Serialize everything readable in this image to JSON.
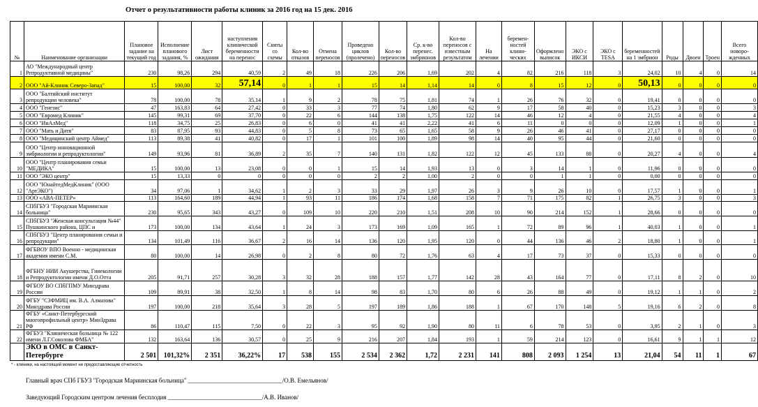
{
  "title": "Отчет о результативности работы клиник за 2016 год на 15 дек. 2016",
  "columns": [
    "№",
    "Наименование организации",
    "Плановое задание на текущий год",
    "Исполнение планового задания, %",
    "Лист ожидания",
    "наступления клинической беременности на перенос",
    "Сняты со схемы",
    "Кол-во отказов",
    "Отмена переносов",
    "Проведено циклов (пролечено)",
    "Кол-во переносов",
    "Ср. к-во перенес. эмбрионов",
    "Кол-во переносов с известным результатом",
    "На лечении",
    "беремен-ностей клини-ческих",
    "Оформлено выписок",
    "ЭКО с ИКСИ",
    "ЭКО с TESA",
    "беременностей на 1 эмбрион",
    "Роды",
    "Двоен",
    "Троен",
    "Всего новоро-жденных"
  ],
  "highlight_color": "#ffff00",
  "highlighted_row": "2",
  "rows": [
    [
      "1",
      "АО \"Международный центр Репродуктивной медицины\"",
      "230",
      "98,26",
      "294",
      "40,59",
      "2",
      "49",
      "18",
      "226",
      "206",
      "1,69",
      "202",
      "4",
      "82",
      "216",
      "118",
      "3",
      "24,02",
      "10",
      "4",
      "0",
      "14"
    ],
    [
      "2",
      "ООО \"Ай-Клиник Северо-Запад\"",
      "15",
      "100,00",
      "32",
      "57,14",
      "0",
      "1",
      "1",
      "15",
      "14",
      "1,14",
      "14",
      "0",
      "8",
      "15",
      "12",
      "0",
      "50,13",
      "0",
      "0",
      "0",
      "0"
    ],
    [
      "3",
      "ООО \"Балтийский институт репродукции человека\"",
      "78",
      "100,00",
      "78",
      "35,14",
      "1",
      "9",
      "2",
      "78",
      "75",
      "1,81",
      "74",
      "1",
      "26",
      "76",
      "32",
      "0",
      "19,41",
      "0",
      "0",
      "0",
      "0"
    ],
    [
      "4",
      "ООО \"Генезис\"",
      "47",
      "163,83",
      "64",
      "27,42",
      "0",
      "33",
      "3",
      "77",
      "74",
      "1,80",
      "62",
      "9",
      "17",
      "58",
      "40",
      "0",
      "15,23",
      "3",
      "0",
      "0",
      "3"
    ],
    [
      "5",
      "ООО \"Евромед Клиник\"",
      "145",
      "99,31",
      "69",
      "37,70",
      "0",
      "22",
      "6",
      "144",
      "138",
      "1,75",
      "122",
      "14",
      "46",
      "12",
      "4",
      "0",
      "21,55",
      "4",
      "0",
      "0",
      "4"
    ],
    [
      "6",
      "ООО \"ИнАлМед\"",
      "118",
      "34,75",
      "25",
      "26,83",
      "0",
      "6",
      "0",
      "41",
      "41",
      "2,22",
      "41",
      "6",
      "11",
      "0",
      "0",
      "0",
      "12,09",
      "1",
      "0",
      "0",
      "1"
    ],
    [
      "7",
      "ООО \"Мать и Дитя\"",
      "83",
      "87,95",
      "93",
      "44,83",
      "0",
      "5",
      "8",
      "73",
      "65",
      "1,65",
      "58",
      "9",
      "26",
      "46",
      "41",
      "0",
      "27,17",
      "0",
      "0",
      "0",
      "0"
    ],
    [
      "8",
      "ООО \"Медицинский центр Аймед\"",
      "113",
      "89,38",
      "41",
      "40,82",
      "0",
      "17",
      "1",
      "101",
      "100",
      "1,89",
      "98",
      "14",
      "40",
      "95",
      "44",
      "0",
      "21,60",
      "0",
      "0",
      "0",
      "0"
    ],
    [
      "9",
      "ООО \"Центр инновационной эмбриологии и репродуктологии\"",
      "149",
      "93,96",
      "81",
      "36,89",
      "2",
      "35",
      "7",
      "140",
      "131",
      "1,82",
      "122",
      "12",
      "45",
      "133",
      "88",
      "0",
      "20,27",
      "4",
      "0",
      "0",
      "4"
    ],
    [
      "10",
      "ООО \"Центр планирования семьи \"МЕДИКА\"",
      "15",
      "100,00",
      "13",
      "23,08",
      "0",
      "0",
      "1",
      "15",
      "14",
      "1,93",
      "13",
      "0",
      "3",
      "14",
      "1",
      "0",
      "11,96",
      "0",
      "0",
      "0",
      "0"
    ],
    [
      "11",
      "ООО \"ЭКО центр\"",
      "15",
      "13,33",
      "0",
      "0",
      "0",
      "0",
      "0",
      "2",
      "2",
      "1,00",
      "2",
      "0",
      "0",
      "1",
      "1",
      "0",
      "0,00",
      "0",
      "0",
      "0",
      "0"
    ],
    [
      "12",
      "ООО \"ЮнайтедМедКлиник\" (ООО \"АртЭКО\")",
      "34",
      "97,06",
      "1",
      "34,62",
      "1",
      "2",
      "3",
      "33",
      "29",
      "1,97",
      "26",
      "3",
      "9",
      "26",
      "10",
      "0",
      "17,57",
      "1",
      "0",
      "0",
      "1"
    ],
    [
      "13",
      "ООО «АВА-ПЕТЕР»",
      "113",
      "164,60",
      "189",
      "44,94",
      "1",
      "93",
      "11",
      "186",
      "174",
      "1,68",
      "158",
      "7",
      "71",
      "175",
      "82",
      "1",
      "26,75",
      "3",
      "0",
      "0",
      "3"
    ],
    [
      "14",
      "СПбГБУЗ \"Городская Мариинская больница\"",
      "230",
      "95,65",
      "343",
      "43,27",
      "0",
      "109",
      "10",
      "220",
      "210",
      "1,51",
      "208",
      "10",
      "90",
      "214",
      "152",
      "1",
      "28,66",
      "0",
      "0",
      "0",
      "0"
    ],
    [
      "15",
      "СПбГБУЗ \"Женская консультация №44\" Пушкинского района, ЦПС и",
      "173",
      "100,00",
      "134",
      "43,64",
      "1",
      "24",
      "3",
      "173",
      "169",
      "1,09",
      "165",
      "1",
      "72",
      "89",
      "96",
      "1",
      "40,03",
      "1",
      "0",
      "0",
      "1"
    ],
    [
      "16",
      "СПбГБУЗ \"Центр планирования семьи и репродукции\"",
      "134",
      "101,49",
      "116",
      "36,67",
      "2",
      "16",
      "14",
      "136",
      "120",
      "1,95",
      "120",
      "0",
      "44",
      "136",
      "46",
      "2",
      "18,80",
      "1",
      "0",
      "0",
      "1"
    ],
    [
      "17",
      "ФГБВОУ ВПО Военно - медицинская академия имени С.М.",
      "80",
      "100,00",
      "14",
      "26,98",
      "0",
      "2",
      "8",
      "80",
      "72",
      "1,76",
      "63",
      "4",
      "17",
      "73",
      "37",
      "0",
      "15,33",
      "0",
      "0",
      "0",
      "0"
    ],
    [
      "18",
      "ФГБНУ НИИ Акушерства, Гинекологии и Репродуктологии имени Д.О.Отта",
      "205",
      "91,71",
      "257",
      "30,28",
      "3",
      "32",
      "28",
      "188",
      "157",
      "1,77",
      "142",
      "28",
      "43",
      "164",
      "77",
      "0",
      "17,11",
      "8",
      "2",
      "0",
      "10"
    ],
    [
      "19",
      "ФГБОУ ВО СПбГПМУ Минздрава России",
      "109",
      "89,91",
      "38",
      "32,50",
      "1",
      "8",
      "14",
      "98",
      "83",
      "1,70",
      "80",
      "6",
      "26",
      "88",
      "49",
      "0",
      "19,12",
      "1",
      "1",
      "0",
      "2"
    ],
    [
      "20",
      "ФГБУ \"СЗФМИЦ им. В.А. Алмазова\" Минздрава России",
      "197",
      "100,00",
      "218",
      "35,64",
      "3",
      "28",
      "5",
      "197",
      "189",
      "1,86",
      "188",
      "1",
      "67",
      "170",
      "148",
      "5",
      "19,16",
      "6",
      "2",
      "0",
      "8"
    ],
    [
      "21",
      "ФГБУ «Санкт-Петербургский многопрофильный центр» МинЗдрава РФ",
      "86",
      "110,47",
      "115",
      "7,50",
      "0",
      "22",
      "3",
      "95",
      "92",
      "1,90",
      "80",
      "11",
      "6",
      "78",
      "53",
      "0",
      "3,95",
      "2",
      "1",
      "0",
      "3"
    ],
    [
      "22",
      "ФГБУЗ \"Клиническая больница № 122 имени Л.Г.Соколова ФМБА\"",
      "132",
      "163,64",
      "136",
      "30,57",
      "0",
      "25",
      "9",
      "216",
      "207",
      "1,84",
      "193",
      "1",
      "59",
      "214",
      "123",
      "0",
      "16,61",
      "9",
      "1",
      "1",
      "12"
    ]
  ],
  "total": [
    "",
    "ЭКО в ОМС в Санкт-Петербурге",
    "2 501",
    "101,32%",
    "2 351",
    "36,22%",
    "17",
    "538",
    "155",
    "2 534",
    "2 362",
    "1,72",
    "2 231",
    "141",
    "808",
    "2 093",
    "1 254",
    "13",
    "21,04",
    "54",
    "11",
    "1",
    "67"
  ],
  "footnote": "* - клиники, на настоящий момент не предоставляющие отчетность",
  "signatures": [
    "Главный врач СПб ГБУЗ \"Городская Мариинская больница\" ______________________________/О.В. Емельянов/",
    "Заведующий Городским центром лечения бесплодия ______________________________/А.В. Иванов/"
  ]
}
